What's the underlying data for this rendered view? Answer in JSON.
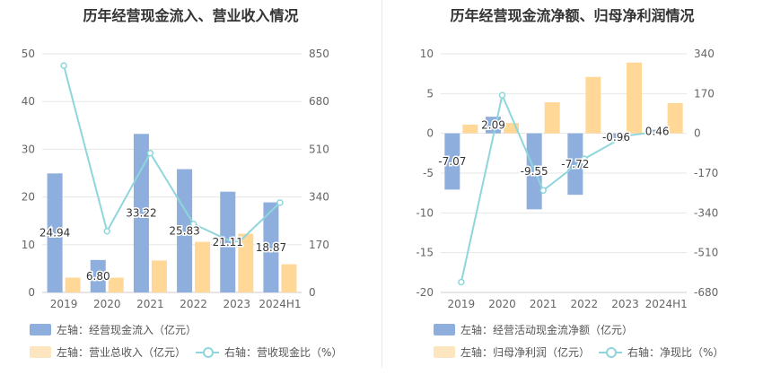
{
  "chart_data": [
    {
      "type": "bar",
      "title": "历年经营现金流入、营业收入情况",
      "categories": [
        "2019",
        "2020",
        "2021",
        "2022",
        "2023",
        "2024H1"
      ],
      "y_left": {
        "ticks": [
          0,
          10,
          20,
          30,
          40,
          50
        ],
        "ylim": [
          0,
          50
        ]
      },
      "y_right": {
        "ticks": [
          0,
          170,
          340,
          510,
          680,
          850
        ],
        "ylim": [
          0,
          850
        ]
      },
      "series": [
        {
          "name": "左轴：经营现金流入（亿元）",
          "type": "bar",
          "axis": "left",
          "color": "#8eaedd",
          "values": [
            24.94,
            6.8,
            33.22,
            25.83,
            21.11,
            18.87
          ],
          "labels": [
            "24.94",
            "6.80",
            "33.22",
            "25.83",
            "21.11",
            "18.87"
          ]
        },
        {
          "name": "左轴：营业总收入（亿元）",
          "type": "bar",
          "axis": "left",
          "color": "#ffd898",
          "values": [
            3.1,
            3.1,
            6.7,
            10.6,
            12.3,
            5.9
          ]
        },
        {
          "name": "右轴：营收现金比（%）",
          "type": "line",
          "axis": "right",
          "color": "#8fd6dc",
          "values": [
            808,
            218,
            496,
            244,
            172,
            320
          ]
        }
      ],
      "grid": true,
      "legend": "bottom"
    },
    {
      "type": "bar",
      "title": "历年经营现金流净额、归母净利润情况",
      "categories": [
        "2019",
        "2020",
        "2021",
        "2022",
        "2023",
        "2024H1"
      ],
      "y_left": {
        "ticks": [
          -20,
          -15,
          -10,
          -5,
          0,
          5,
          10
        ],
        "ylim": [
          -20,
          10
        ]
      },
      "y_right": {
        "ticks": [
          -680,
          -510,
          -340,
          -170,
          0,
          170,
          340
        ],
        "ylim": [
          -680,
          340
        ]
      },
      "series": [
        {
          "name": "左轴：经营活动现金流净额（亿元）",
          "type": "bar",
          "axis": "left",
          "color": "#8eaedd",
          "values": [
            -7.07,
            2.09,
            -9.55,
            -7.72,
            -0.96,
            0.46
          ],
          "labels": [
            "-7.07",
            "2.09",
            "-9.55",
            "-7.72",
            "-0.96",
            "0.46"
          ]
        },
        {
          "name": "左轴：归母净利润（亿元）",
          "type": "bar",
          "axis": "left",
          "color": "#ffd898",
          "values": [
            1.1,
            1.3,
            3.9,
            7.1,
            8.9,
            3.8
          ]
        },
        {
          "name": "右轴：净现比（%）",
          "type": "line",
          "axis": "right",
          "color": "#8fd6dc",
          "values": [
            -636,
            163,
            -244,
            -109,
            -11,
            12
          ]
        }
      ],
      "grid": true,
      "legend": "bottom"
    }
  ]
}
